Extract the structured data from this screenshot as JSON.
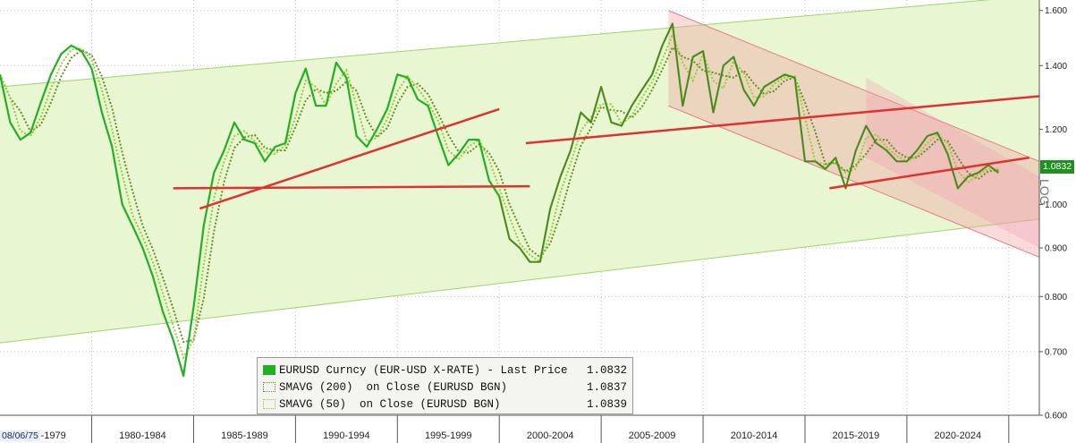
{
  "chart_data": {
    "type": "line",
    "y_scale": "log",
    "ylim": [
      0.6,
      1.62
    ],
    "y_ticks": [
      "1.600",
      "1.400",
      "1.200",
      "1.000",
      "0.900",
      "0.800",
      "0.700",
      "0.600"
    ],
    "y_tick_values": [
      1.6,
      1.4,
      1.2,
      1.0,
      0.9,
      0.8,
      0.7,
      0.6
    ],
    "x_range": [
      1975.5,
      2026.5
    ],
    "x_ticks": [
      "75-1979",
      "1980-1984",
      "1985-1989",
      "1990-1994",
      "1995-1999",
      "2000-2004",
      "2005-2009",
      "2010-2014",
      "2015-2019",
      "2020-2024"
    ],
    "x_tick_centers": [
      1977.5,
      1982.5,
      1987.5,
      1992.5,
      1997.5,
      2002.5,
      2007.5,
      2012.5,
      2017.5,
      2022.5
    ],
    "start_date_label": "08/06/75",
    "axis_label": "LOG",
    "grid": true,
    "legend_placement": "bottom-center",
    "series": [
      {
        "name": "EURUSD Curncy (EUR-USD X-RATE) - Last Price",
        "last": "1.0832",
        "color": "#22b022",
        "x": [
          1975.5,
          1976.0,
          1976.5,
          1977.0,
          1977.5,
          1978.0,
          1978.5,
          1979.0,
          1979.5,
          1980.0,
          1980.5,
          1981.0,
          1981.5,
          1982.0,
          1982.5,
          1983.0,
          1983.5,
          1984.0,
          1984.5,
          1985.0,
          1985.5,
          1986.0,
          1986.5,
          1987.0,
          1987.5,
          1988.0,
          1988.5,
          1989.0,
          1989.5,
          1990.0,
          1990.5,
          1991.0,
          1991.5,
          1992.0,
          1992.5,
          1993.0,
          1993.5,
          1994.0,
          1994.5,
          1995.0,
          1995.5,
          1996.0,
          1996.5,
          1997.0,
          1997.5,
          1998.0,
          1998.5,
          1999.0,
          1999.5,
          2000.0,
          2000.5,
          2001.0,
          2001.5,
          2002.0,
          2002.5,
          2003.0,
          2003.5,
          2004.0,
          2004.5,
          2005.0,
          2005.5,
          2006.0,
          2006.5,
          2007.0,
          2007.5,
          2008.0,
          2008.5,
          2009.0,
          2009.5,
          2010.0,
          2010.5,
          2011.0,
          2011.5,
          2012.0,
          2012.5,
          2013.0,
          2013.5,
          2014.0,
          2014.5,
          2015.0,
          2015.5,
          2016.0,
          2016.5,
          2017.0,
          2017.5,
          2018.0,
          2018.5,
          2019.0,
          2019.5,
          2020.0,
          2020.5,
          2021.0,
          2021.5,
          2022.0,
          2022.5,
          2023.0,
          2023.5,
          2024.0,
          2024.5
        ],
        "values": [
          1.37,
          1.22,
          1.17,
          1.19,
          1.28,
          1.37,
          1.44,
          1.47,
          1.45,
          1.39,
          1.25,
          1.15,
          1.0,
          0.95,
          0.9,
          0.84,
          0.77,
          0.72,
          0.66,
          0.78,
          0.95,
          1.08,
          1.14,
          1.22,
          1.17,
          1.16,
          1.11,
          1.15,
          1.16,
          1.31,
          1.39,
          1.27,
          1.27,
          1.41,
          1.36,
          1.18,
          1.15,
          1.2,
          1.26,
          1.37,
          1.36,
          1.29,
          1.27,
          1.18,
          1.1,
          1.13,
          1.17,
          1.17,
          1.06,
          1.02,
          0.92,
          0.9,
          0.87,
          0.87,
          0.99,
          1.07,
          1.14,
          1.25,
          1.22,
          1.33,
          1.22,
          1.21,
          1.27,
          1.32,
          1.37,
          1.47,
          1.55,
          1.27,
          1.43,
          1.45,
          1.25,
          1.4,
          1.43,
          1.32,
          1.27,
          1.33,
          1.35,
          1.37,
          1.36,
          1.11,
          1.11,
          1.09,
          1.12,
          1.04,
          1.14,
          1.21,
          1.16,
          1.14,
          1.11,
          1.11,
          1.14,
          1.18,
          1.19,
          1.13,
          1.04,
          1.07,
          1.08,
          1.1,
          1.08
        ]
      },
      {
        "name": "SMAVG (200)  on Close (EURUSD BGN)",
        "last": "1.0837",
        "color": "#6b8e23"
      },
      {
        "name": "SMAVG (50)  on Close (EURUSD BGN)",
        "last": "1.0839",
        "color": "#9acd32"
      }
    ],
    "last_price_badge": "1.0832"
  }
}
